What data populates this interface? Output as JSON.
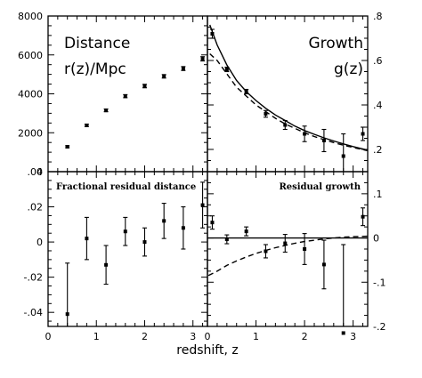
{
  "figure": {
    "xlabel": "redshift, z"
  },
  "panels": {
    "distance": {
      "title_line1": "Distance",
      "title_line2": "r(z)/Mpc"
    },
    "growth": {
      "title_line1": "Growth",
      "title_line2": "g(z)"
    },
    "residual_distance": {
      "title": "Fractional residual distance"
    },
    "residual_growth": {
      "title": "Residual growth"
    }
  },
  "chart_data": [
    {
      "id": "distance",
      "type": "scatter",
      "title": "Distance r(z)/Mpc",
      "xlim": [
        0,
        3.3
      ],
      "ylim": [
        0,
        8000
      ],
      "yticks": [
        0,
        2000,
        4000,
        6000,
        8000
      ],
      "ytick_side": "left",
      "series": [
        {
          "x": [
            0.4,
            0.8,
            1.2,
            1.6,
            2.0,
            2.4,
            2.8,
            3.2
          ],
          "y": [
            1280,
            2380,
            3150,
            3880,
            4400,
            4900,
            5300,
            5800
          ],
          "err": [
            50,
            60,
            70,
            80,
            90,
            90,
            100,
            110
          ]
        }
      ]
    },
    {
      "id": "growth",
      "type": "scatter",
      "title": "Growth g(z)",
      "xlim": [
        0,
        3.3
      ],
      "ylim": [
        0.1,
        0.8
      ],
      "yticks": [
        0.2,
        0.4,
        0.6,
        0.8
      ],
      "ytick_side": "right",
      "series": [
        {
          "x": [
            0.1,
            0.4,
            0.8,
            1.2,
            1.6,
            2.0,
            2.4,
            2.8,
            3.2
          ],
          "y": [
            0.72,
            0.56,
            0.46,
            0.36,
            0.31,
            0.27,
            0.24,
            0.17,
            0.27
          ],
          "err": [
            0.02,
            0.01,
            0.01,
            0.015,
            0.02,
            0.035,
            0.05,
            0.1,
            0.03
          ]
        }
      ],
      "curves": [
        {
          "style": "solid",
          "x": [
            0.05,
            0.2,
            0.4,
            0.6,
            0.8,
            1.0,
            1.2,
            1.4,
            1.6,
            1.8,
            2.0,
            2.2,
            2.4,
            2.6,
            2.8,
            3.0,
            3.3
          ],
          "y": [
            0.76,
            0.67,
            0.58,
            0.51,
            0.46,
            0.42,
            0.385,
            0.355,
            0.33,
            0.305,
            0.285,
            0.268,
            0.252,
            0.238,
            0.225,
            0.213,
            0.197
          ]
        },
        {
          "style": "dashed",
          "x": [
            0.05,
            0.2,
            0.4,
            0.6,
            0.8,
            1.0,
            1.2,
            1.4,
            1.6,
            1.8,
            2.0,
            2.2,
            2.4,
            2.6,
            2.8,
            3.0,
            3.3
          ],
          "y": [
            0.63,
            0.6,
            0.54,
            0.48,
            0.44,
            0.4,
            0.37,
            0.34,
            0.315,
            0.295,
            0.275,
            0.258,
            0.244,
            0.231,
            0.219,
            0.209,
            0.194
          ]
        }
      ]
    },
    {
      "id": "residual_distance",
      "type": "scatter",
      "title": "Fractional residual distance",
      "xlim": [
        0,
        3.3
      ],
      "ylim": [
        -0.048,
        0.04
      ],
      "yticks": [
        -0.04,
        -0.02,
        0,
        0.02,
        0.04
      ],
      "ytick_side": "left",
      "series": [
        {
          "x": [
            0.4,
            0.8,
            1.2,
            1.6,
            2.0,
            2.4,
            2.8,
            3.2
          ],
          "y": [
            -0.041,
            0.002,
            -0.013,
            0.006,
            0.0,
            0.012,
            0.008,
            0.021
          ],
          "err": [
            0.029,
            0.012,
            0.011,
            0.008,
            0.008,
            0.01,
            0.012,
            0.013
          ]
        }
      ]
    },
    {
      "id": "residual_growth",
      "type": "scatter",
      "title": "Residual growth",
      "xlim": [
        0,
        3.3
      ],
      "ylim": [
        -0.2,
        0.15
      ],
      "yticks": [
        -0.2,
        -0.1,
        0,
        0.1
      ],
      "ytick_side": "right",
      "xticks": [
        0,
        1,
        2,
        3
      ],
      "series": [
        {
          "x": [
            0.1,
            0.4,
            0.8,
            1.2,
            1.6,
            2.0,
            2.4,
            2.8,
            3.2
          ],
          "y": [
            0.035,
            -0.003,
            0.015,
            -0.03,
            -0.012,
            -0.025,
            -0.06,
            -0.215,
            0.048
          ],
          "err": [
            0.015,
            0.01,
            0.01,
            0.015,
            0.02,
            0.035,
            0.055,
            0.2,
            0.02
          ]
        }
      ],
      "curves": [
        {
          "style": "solid",
          "x": [
            0,
            3.3
          ],
          "y": [
            0,
            0
          ]
        },
        {
          "style": "dashed",
          "x": [
            0.02,
            0.2,
            0.4,
            0.6,
            0.8,
            1.0,
            1.2,
            1.4,
            1.6,
            1.8,
            2.0,
            2.2,
            2.4,
            2.6,
            2.8,
            3.0,
            3.3
          ],
          "y": [
            -0.085,
            -0.075,
            -0.062,
            -0.052,
            -0.043,
            -0.035,
            -0.028,
            -0.022,
            -0.017,
            -0.012,
            -0.008,
            -0.005,
            -0.002,
            0.0,
            0.002,
            0.003,
            0.004
          ]
        }
      ]
    }
  ]
}
